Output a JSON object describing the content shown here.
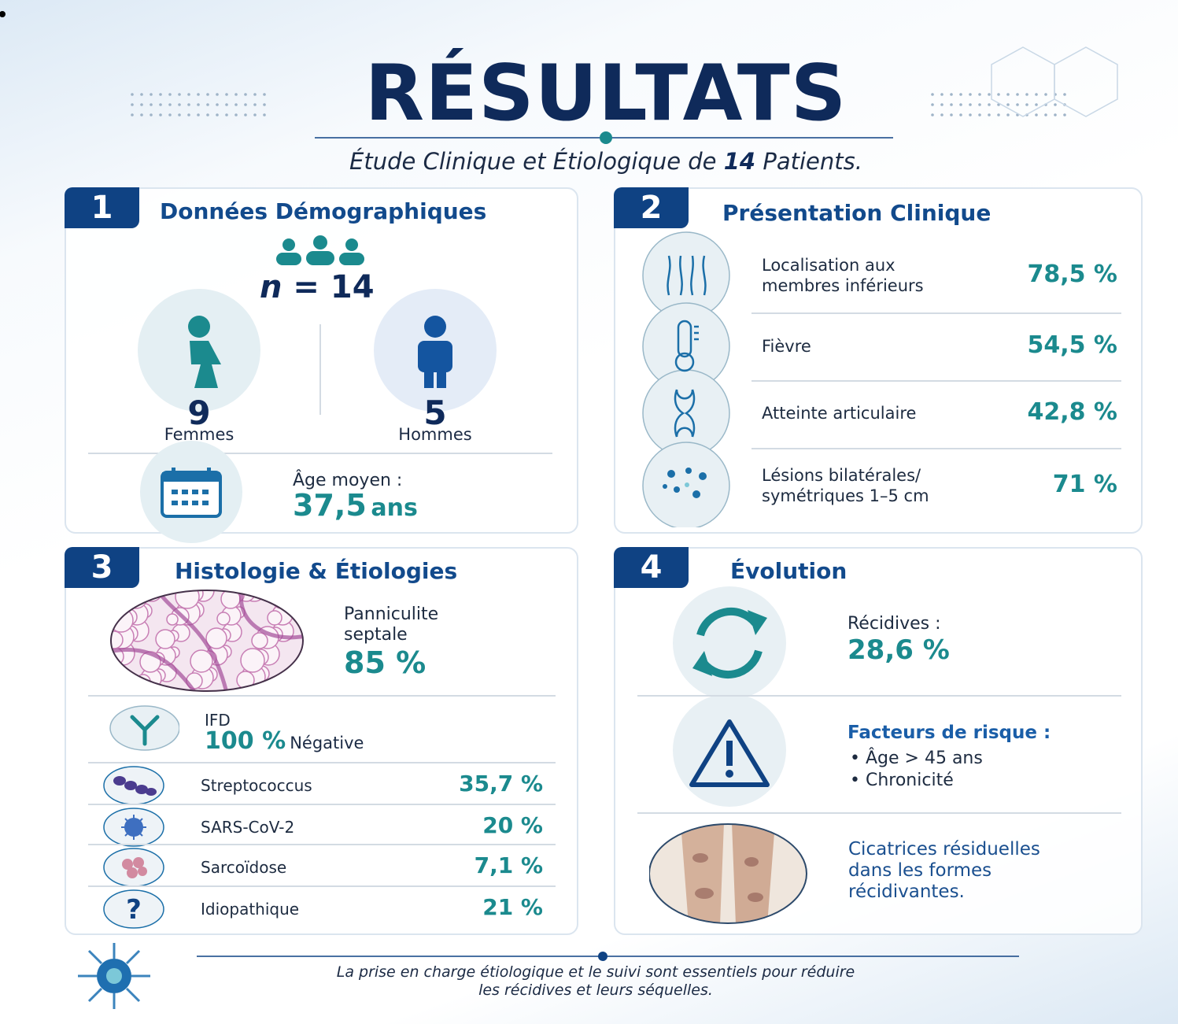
{
  "header": {
    "title": "RÉSULTATS",
    "subtitle": {
      "prefix": "Étude Clinique et Étiologique de",
      "count": "14",
      "suffix": "Patients."
    }
  },
  "sections": [
    {
      "number": "1",
      "title": "Données Démographiques",
      "sample": {
        "symbol": "n",
        "text": "= 14"
      },
      "women": {
        "count": "9",
        "label": "Femmes"
      },
      "men": {
        "count": "5",
        "label": "Hommes"
      },
      "age": {
        "label": "Âge moyen :",
        "value": "37,5",
        "unit": "ans"
      }
    },
    {
      "number": "2",
      "title": "Présentation Clinique",
      "items": [
        {
          "label": [
            "Localisation aux",
            "membres inférieurs"
          ],
          "value": "78,5 %"
        },
        {
          "label": [
            "Fièvre"
          ],
          "value": "54,5 %"
        },
        {
          "label": [
            "Atteinte articulaire"
          ],
          "value": "42,8 %"
        },
        {
          "label": [
            "Lésions bilatérales/",
            "symétriques 1–5 cm"
          ],
          "value": "71 %"
        }
      ]
    },
    {
      "number": "3",
      "title": "Histologie & Étiologies",
      "histology": {
        "label": [
          "Panniculite",
          "septale"
        ],
        "value": "85 %"
      },
      "ifd": {
        "label": "IFD",
        "value": "100 %",
        "result": "Négative"
      },
      "etiologies": [
        {
          "label": "Streptococcus",
          "value": "35,7 %"
        },
        {
          "label": "SARS-CoV-2",
          "value": "20 %"
        },
        {
          "label": "Sarcoïdose",
          "value": "7,1 %"
        },
        {
          "label": "Idiopathique",
          "value": "21 %"
        }
      ]
    },
    {
      "number": "4",
      "title": "Évolution",
      "recurrence": {
        "label": "Récidives :",
        "value": "28,6 %"
      },
      "risk_factors": {
        "title": "Facteurs de risque :",
        "items": [
          "Âge > 45 ans",
          "Chronicité"
        ]
      },
      "scars": [
        "Cicatrices résiduelles",
        "dans les formes",
        "récidivantes."
      ]
    }
  ],
  "footer": [
    "La prise en charge étiologique et le suivi sont essentiels pour réduire",
    "les récidives et leurs séquelles."
  ]
}
